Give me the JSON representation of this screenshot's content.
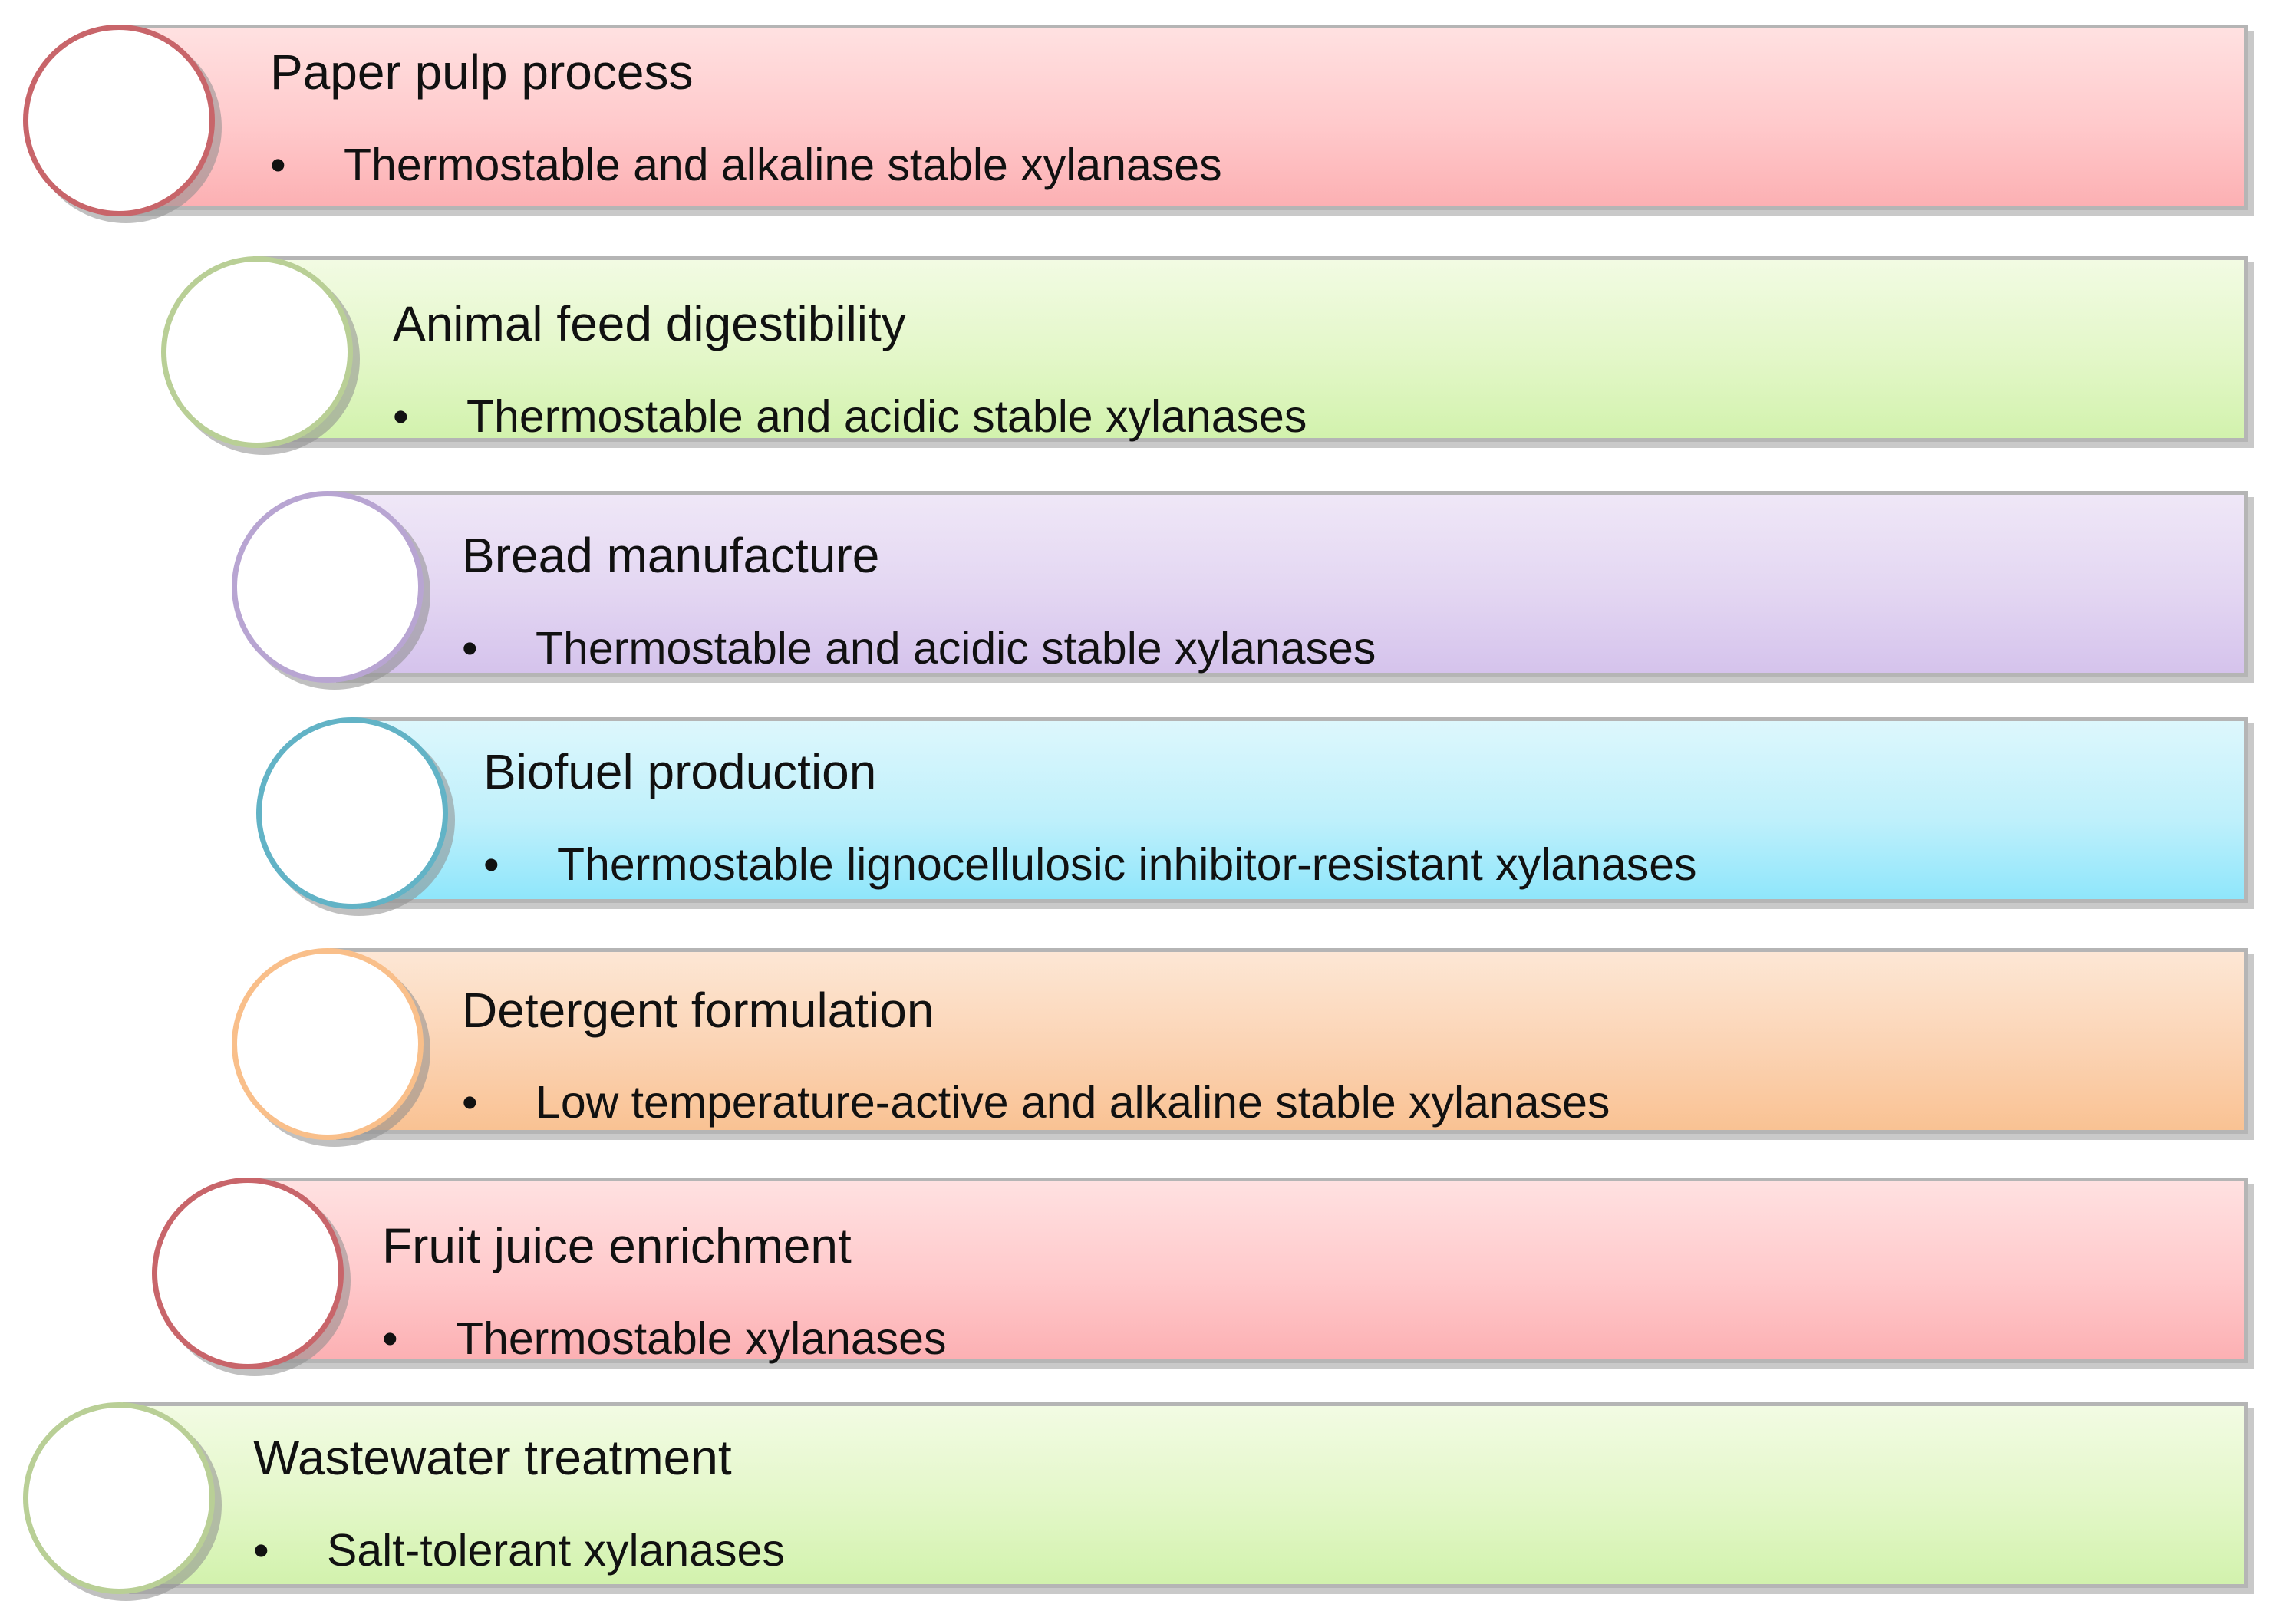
{
  "items": [
    {
      "title": "Paper pulp process",
      "bullet": "•",
      "detail": "Thermostable and alkaline stable xylanases",
      "theme": "red",
      "circle_color": "#c8656a"
    },
    {
      "title": "Animal feed digestibility",
      "bullet": "•",
      "detail": "Thermostable and acidic stable xylanases",
      "theme": "green",
      "circle_color": "#b9cf96"
    },
    {
      "title": "Bread manufacture",
      "bullet": "•",
      "detail": "Thermostable and acidic stable xylanases",
      "theme": "purple",
      "circle_color": "#b8a5d2"
    },
    {
      "title": "Biofuel production",
      "bullet": "•",
      "detail": "Thermostable lignocellulosic inhibitor-resistant xylanases",
      "theme": "cyan",
      "circle_color": "#62b3c6"
    },
    {
      "title": "Detergent formulation",
      "bullet": "•",
      "detail": "Low temperature-active and alkaline stable xylanases",
      "theme": "orange",
      "circle_color": "#f9bf8a"
    },
    {
      "title": "Fruit juice enrichment",
      "bullet": "•",
      "detail": "Thermostable xylanases",
      "theme": "red",
      "circle_color": "#c8656a"
    },
    {
      "title": "Wastewater treatment",
      "bullet": "•",
      "detail": "Salt-tolerant xylanases",
      "theme": "green",
      "circle_color": "#b9cf96"
    }
  ]
}
